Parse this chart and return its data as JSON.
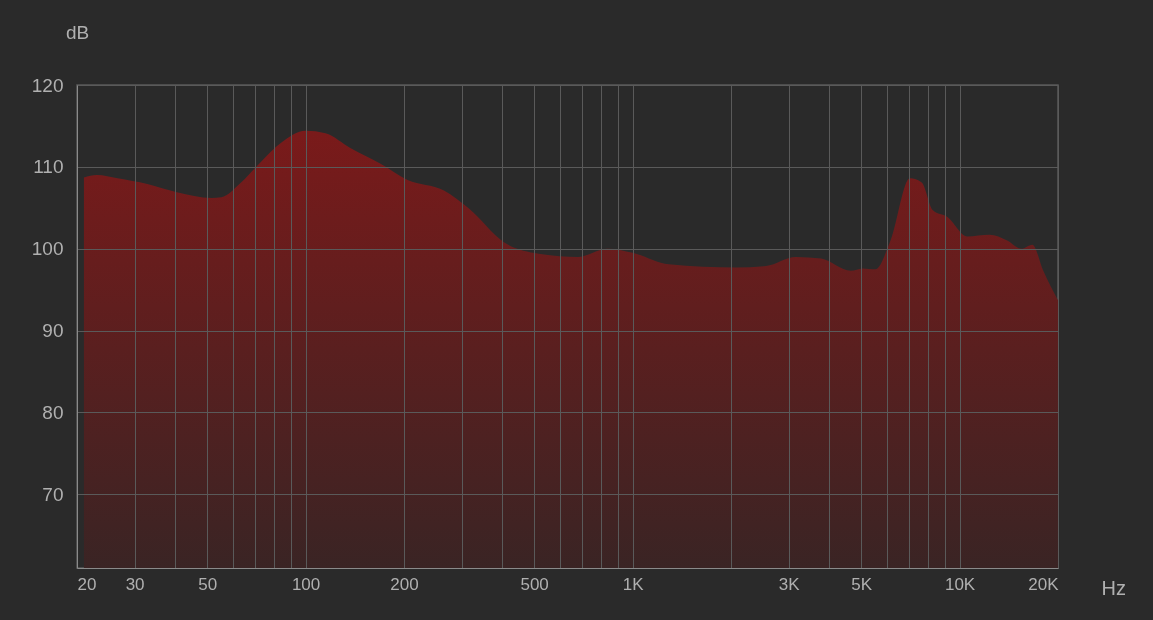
{
  "chart_data": {
    "type": "area",
    "xlabel": "Hz",
    "ylabel": "dB",
    "log": "x",
    "grid": true,
    "x": [
      21,
      23,
      26.6,
      32.8,
      40.4,
      51.6,
      55.3,
      63.5,
      73,
      84,
      100,
      115,
      137,
      169,
      205,
      265,
      316,
      404,
      516,
      681,
      838,
      1000,
      1290,
      2080,
      2560,
      3160,
      3770,
      4650,
      5050,
      5530,
      6150,
      7050,
      7660,
      8290,
      9160,
      10560,
      12350,
      13980,
      15450,
      16700,
      18030,
      20000
    ],
    "series": [
      {
        "color": "#7a1a1a",
        "values": [
          108.7,
          109,
          108.6,
          107.9,
          106.9,
          106.2,
          106.3,
          108.1,
          110.6,
          112.9,
          114.4,
          114.1,
          112.3,
          110.4,
          108.4,
          107.1,
          104.9,
          100.8,
          99.4,
          99.0,
          100.0,
          99.5,
          98.1,
          97.7,
          97.9,
          99.0,
          98.8,
          97.3,
          97.6,
          97.5,
          101.0,
          108.6,
          108.1,
          104.7,
          103.9,
          101.5,
          101.7,
          101.0,
          100.0,
          100.5,
          97.3,
          93.7
        ]
      }
    ],
    "xlim": [
      20,
      20000
    ],
    "xticks": [
      20,
      30,
      {
        "value": 40,
        "label": null
      },
      50,
      {
        "value": 60,
        "label": null
      },
      {
        "value": 70,
        "label": null
      },
      {
        "value": 80,
        "label": null
      },
      {
        "value": 90,
        "label": null
      },
      100,
      200,
      {
        "value": 300,
        "label": null
      },
      {
        "value": 400,
        "label": null
      },
      500,
      {
        "value": 600,
        "label": null
      },
      {
        "value": 700,
        "label": null
      },
      {
        "value": 800,
        "label": null
      },
      {
        "value": 900,
        "label": null
      },
      {
        "value": 1000,
        "label": "1K"
      },
      {
        "value": 2000,
        "label": null
      },
      {
        "value": 3000,
        "label": "3K"
      },
      {
        "value": 4000,
        "label": null
      },
      {
        "value": 5000,
        "label": "5K"
      },
      {
        "value": 6000,
        "label": null
      },
      {
        "value": 7000,
        "label": null
      },
      {
        "value": 8000,
        "label": null
      },
      {
        "value": 9000,
        "label": null
      },
      {
        "value": 10000,
        "label": "10K"
      },
      {
        "value": 20000,
        "label": "20K"
      }
    ],
    "ylim": [
      61,
      120
    ],
    "yticks": [
      70,
      80,
      90,
      100,
      110,
      120
    ]
  }
}
